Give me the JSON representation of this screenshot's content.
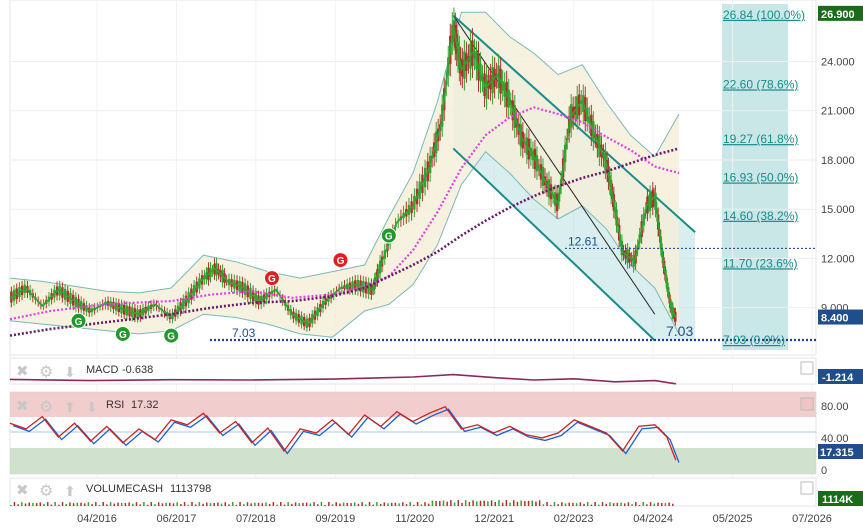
{
  "chart_data": {
    "type": "line",
    "title": "",
    "y_axis": {
      "ticks": [
        "24.000",
        "21.000",
        "18.000",
        "15.000",
        "12.000",
        "9.000"
      ],
      "tick_values": [
        24,
        21,
        18,
        15,
        12,
        9
      ],
      "range": [
        6.3,
        27.5
      ],
      "position": "right"
    },
    "x_axis": {
      "ticks": [
        "04/2016",
        "06/2017",
        "07/2018",
        "09/2019",
        "11/2020",
        "12/2021",
        "02/2023",
        "04/2024",
        "05/2025",
        "07/2026"
      ]
    },
    "price_badges": {
      "high": "26.900",
      "last": "8.400",
      "high_value": 26.9,
      "last_value": 8.4,
      "high_color": "#1a6b1a",
      "last_color": "#1f4e8c"
    },
    "fibonacci": {
      "levels": [
        {
          "label": "26.84  (100.0%)",
          "value": 26.84
        },
        {
          "label": "22.60  (78.6%)",
          "value": 22.6
        },
        {
          "label": "19.27  (61.8%)",
          "value": 19.27
        },
        {
          "label": "16.93  (50.0%)",
          "value": 16.93
        },
        {
          "label": "14.60  (38.2%)",
          "value": 14.6
        },
        {
          "label": "11.70  (23.6%)",
          "value": 11.7
        },
        {
          "label": "7.03  (0.0%)",
          "value": 7.03
        }
      ],
      "color": "#1a8a8a"
    },
    "support_line": {
      "left_label": "7.03",
      "right_label": "7.03",
      "value": 7.03
    },
    "resistance_line": {
      "label": "12.61",
      "value": 12.61
    },
    "signals": [
      {
        "text": "G",
        "kind": "buy",
        "x": 0.085,
        "value": 8.2
      },
      {
        "text": "G",
        "kind": "buy",
        "x": 0.14,
        "value": 7.4
      },
      {
        "text": "G",
        "kind": "buy",
        "x": 0.2,
        "value": 7.3
      },
      {
        "text": "G",
        "kind": "sell",
        "x": 0.325,
        "value": 10.8
      },
      {
        "text": "G",
        "kind": "sell",
        "x": 0.41,
        "value": 11.9
      },
      {
        "text": "G",
        "kind": "buy",
        "x": 0.47,
        "value": 13.4
      }
    ],
    "signal_colors": {
      "buy": "#1e9a2a",
      "sell": "#e02020"
    },
    "price_series": [
      [
        0.0,
        9.6
      ],
      [
        0.02,
        10.2
      ],
      [
        0.04,
        9.1
      ],
      [
        0.06,
        10.1
      ],
      [
        0.08,
        9.4
      ],
      [
        0.1,
        8.8
      ],
      [
        0.12,
        9.3
      ],
      [
        0.14,
        8.9
      ],
      [
        0.16,
        8.6
      ],
      [
        0.18,
        9.2
      ],
      [
        0.2,
        8.4
      ],
      [
        0.22,
        9.5
      ],
      [
        0.24,
        10.8
      ],
      [
        0.255,
        11.4
      ],
      [
        0.27,
        10.6
      ],
      [
        0.29,
        10.2
      ],
      [
        0.31,
        9.4
      ],
      [
        0.33,
        10.1
      ],
      [
        0.35,
        8.6
      ],
      [
        0.37,
        8.0
      ],
      [
        0.39,
        9.3
      ],
      [
        0.41,
        10.2
      ],
      [
        0.43,
        10.4
      ],
      [
        0.45,
        10.1
      ],
      [
        0.46,
        11.6
      ],
      [
        0.48,
        14.2
      ],
      [
        0.5,
        15.2
      ],
      [
        0.52,
        17.5
      ],
      [
        0.535,
        20.2
      ],
      [
        0.55,
        26.2
      ],
      [
        0.56,
        23.5
      ],
      [
        0.575,
        24.6
      ],
      [
        0.59,
        22.4
      ],
      [
        0.605,
        23.2
      ],
      [
        0.62,
        21.6
      ],
      [
        0.635,
        19.3
      ],
      [
        0.65,
        18.2
      ],
      [
        0.665,
        16.6
      ],
      [
        0.68,
        15.3
      ],
      [
        0.695,
        20.6
      ],
      [
        0.71,
        21.6
      ],
      [
        0.725,
        19.6
      ],
      [
        0.74,
        17.8
      ],
      [
        0.75,
        15.2
      ],
      [
        0.76,
        12.4
      ],
      [
        0.775,
        11.8
      ],
      [
        0.79,
        15.2
      ],
      [
        0.8,
        15.8
      ],
      [
        0.81,
        12.0
      ],
      [
        0.82,
        9.0
      ],
      [
        0.826,
        8.4
      ]
    ],
    "bollinger_upper": [
      [
        0.0,
        10.8
      ],
      [
        0.04,
        10.6
      ],
      [
        0.08,
        10.3
      ],
      [
        0.12,
        10.0
      ],
      [
        0.16,
        9.9
      ],
      [
        0.2,
        10.2
      ],
      [
        0.24,
        12.2
      ],
      [
        0.28,
        11.8
      ],
      [
        0.32,
        11.2
      ],
      [
        0.36,
        10.8
      ],
      [
        0.4,
        11.2
      ],
      [
        0.44,
        11.6
      ],
      [
        0.47,
        14.5
      ],
      [
        0.5,
        17.2
      ],
      [
        0.53,
        21.5
      ],
      [
        0.56,
        27.0
      ],
      [
        0.59,
        27.0
      ],
      [
        0.62,
        25.5
      ],
      [
        0.65,
        24.5
      ],
      [
        0.68,
        23.2
      ],
      [
        0.71,
        23.8
      ],
      [
        0.74,
        21.5
      ],
      [
        0.77,
        19.5
      ],
      [
        0.8,
        18.2
      ],
      [
        0.83,
        20.8
      ]
    ],
    "bollinger_lower": [
      [
        0.0,
        8.2
      ],
      [
        0.04,
        8.0
      ],
      [
        0.08,
        7.8
      ],
      [
        0.12,
        7.6
      ],
      [
        0.16,
        7.4
      ],
      [
        0.2,
        7.6
      ],
      [
        0.24,
        8.6
      ],
      [
        0.28,
        8.4
      ],
      [
        0.32,
        8.0
      ],
      [
        0.36,
        7.4
      ],
      [
        0.4,
        7.2
      ],
      [
        0.44,
        8.8
      ],
      [
        0.47,
        9.2
      ],
      [
        0.5,
        10.4
      ],
      [
        0.53,
        12.8
      ],
      [
        0.56,
        16.5
      ],
      [
        0.59,
        18.5
      ],
      [
        0.62,
        17.2
      ],
      [
        0.65,
        15.6
      ],
      [
        0.68,
        14.4
      ],
      [
        0.71,
        15.2
      ],
      [
        0.74,
        13.8
      ],
      [
        0.77,
        11.6
      ],
      [
        0.8,
        10.2
      ],
      [
        0.83,
        7.4
      ]
    ],
    "ma_fast": [
      [
        0.0,
        8.3
      ],
      [
        0.05,
        8.8
      ],
      [
        0.1,
        9.1
      ],
      [
        0.15,
        9.3
      ],
      [
        0.2,
        9.4
      ],
      [
        0.25,
        9.8
      ],
      [
        0.3,
        10.0
      ],
      [
        0.35,
        9.6
      ],
      [
        0.4,
        9.8
      ],
      [
        0.44,
        10.3
      ],
      [
        0.47,
        10.9
      ],
      [
        0.5,
        12.5
      ],
      [
        0.53,
        14.8
      ],
      [
        0.56,
        17.5
      ],
      [
        0.59,
        19.5
      ],
      [
        0.62,
        20.6
      ],
      [
        0.65,
        21.2
      ],
      [
        0.68,
        20.8
      ],
      [
        0.71,
        20.3
      ],
      [
        0.74,
        19.4
      ],
      [
        0.77,
        18.6
      ],
      [
        0.8,
        17.6
      ],
      [
        0.83,
        17.2
      ]
    ],
    "ma_slow": [
      [
        0.0,
        7.3
      ],
      [
        0.05,
        7.7
      ],
      [
        0.1,
        8.0
      ],
      [
        0.15,
        8.3
      ],
      [
        0.2,
        8.6
      ],
      [
        0.25,
        9.0
      ],
      [
        0.3,
        9.3
      ],
      [
        0.35,
        9.4
      ],
      [
        0.4,
        9.7
      ],
      [
        0.44,
        10.2
      ],
      [
        0.47,
        10.9
      ],
      [
        0.5,
        11.6
      ],
      [
        0.53,
        12.4
      ],
      [
        0.56,
        13.4
      ],
      [
        0.59,
        14.3
      ],
      [
        0.62,
        15.1
      ],
      [
        0.65,
        15.8
      ],
      [
        0.68,
        16.4
      ],
      [
        0.71,
        16.9
      ],
      [
        0.74,
        17.3
      ],
      [
        0.77,
        17.8
      ],
      [
        0.8,
        18.3
      ],
      [
        0.83,
        18.7
      ]
    ],
    "channel": {
      "upper_start": [
        0.55,
        26.8
      ],
      "upper_end": [
        0.85,
        13.6
      ],
      "lower_start": [
        0.55,
        18.7
      ],
      "lower_end": [
        0.8,
        7.0
      ],
      "mid_start": [
        0.55,
        26.8
      ],
      "mid_end": [
        0.8,
        8.6
      ],
      "color": "#1a8a8a"
    },
    "colors": {
      "price_up": "#2ea52e",
      "price_down": "#b03030",
      "bollinger": "#7ab8b8",
      "bollinger_fill": "#f5efd8",
      "ma_fast": "#e040e0",
      "ma_slow": "#6a1a6a",
      "fib_fill": "#bfe3e3"
    },
    "panels": [
      {
        "name": "MACD",
        "value": "-0.638",
        "badge": "-1.214",
        "badge_color": "#1f4e8c"
      },
      {
        "name": "RSI",
        "value": "17.32",
        "badge": "17.315",
        "badge_color": "#1f4e8c",
        "levels": [
          "80.00",
          "40.00",
          "0"
        ],
        "level_values": [
          80,
          40,
          0
        ]
      },
      {
        "name": "VOLUMECASH",
        "value": "1113798",
        "badge": "1114K",
        "badge_color": "#1a6b1a"
      }
    ],
    "rsi_series": [
      [
        0.0,
        62
      ],
      [
        0.02,
        55
      ],
      [
        0.04,
        70
      ],
      [
        0.06,
        45
      ],
      [
        0.08,
        62
      ],
      [
        0.1,
        40
      ],
      [
        0.12,
        58
      ],
      [
        0.14,
        38
      ],
      [
        0.16,
        55
      ],
      [
        0.18,
        42
      ],
      [
        0.2,
        66
      ],
      [
        0.22,
        60
      ],
      [
        0.24,
        74
      ],
      [
        0.26,
        50
      ],
      [
        0.28,
        64
      ],
      [
        0.3,
        38
      ],
      [
        0.32,
        56
      ],
      [
        0.34,
        28
      ],
      [
        0.36,
        55
      ],
      [
        0.38,
        50
      ],
      [
        0.4,
        66
      ],
      [
        0.42,
        48
      ],
      [
        0.44,
        72
      ],
      [
        0.46,
        58
      ],
      [
        0.48,
        76
      ],
      [
        0.5,
        64
      ],
      [
        0.52,
        74
      ],
      [
        0.54,
        82
      ],
      [
        0.56,
        55
      ],
      [
        0.58,
        60
      ],
      [
        0.6,
        50
      ],
      [
        0.62,
        58
      ],
      [
        0.64,
        48
      ],
      [
        0.66,
        44
      ],
      [
        0.68,
        50
      ],
      [
        0.7,
        66
      ],
      [
        0.72,
        58
      ],
      [
        0.74,
        50
      ],
      [
        0.76,
        28
      ],
      [
        0.78,
        58
      ],
      [
        0.8,
        60
      ],
      [
        0.815,
        45
      ],
      [
        0.826,
        17
      ]
    ],
    "macd_series": [
      [
        0.0,
        0.1
      ],
      [
        0.1,
        -0.1
      ],
      [
        0.2,
        0.05
      ],
      [
        0.3,
        0.0
      ],
      [
        0.4,
        0.15
      ],
      [
        0.5,
        0.5
      ],
      [
        0.55,
        0.9
      ],
      [
        0.6,
        0.4
      ],
      [
        0.65,
        0.0
      ],
      [
        0.7,
        0.2
      ],
      [
        0.75,
        -0.3
      ],
      [
        0.8,
        -0.1
      ],
      [
        0.826,
        -0.64
      ]
    ]
  }
}
